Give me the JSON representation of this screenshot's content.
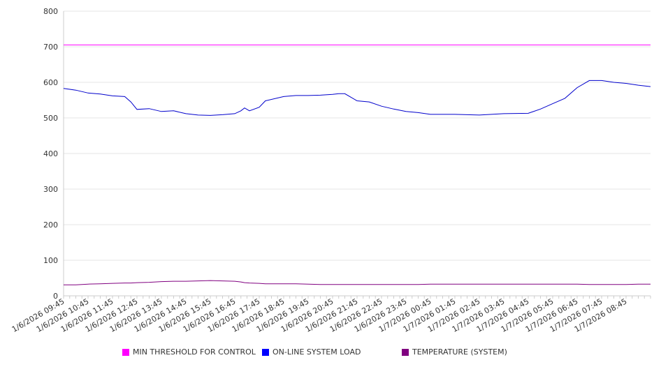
{
  "chart_data": {
    "type": "line",
    "ylim": [
      0,
      800
    ],
    "yticks": [
      "0",
      "100",
      "200",
      "300",
      "400",
      "500",
      "600",
      "700",
      "800"
    ],
    "grid": true,
    "legend_position": "bottom",
    "xtick_labels": [
      "1/6/2026 09:45",
      "1/6/2026 10:45",
      "1/6/2026 11:45",
      "1/6/2026 12:45",
      "1/6/2026 13:45",
      "1/6/2026 14:45",
      "1/6/2026 15:45",
      "1/6/2026 16:45",
      "1/6/2026 17:45",
      "1/6/2026 18:45",
      "1/6/2026 19:45",
      "1/6/2026 20:45",
      "1/6/2026 21:45",
      "1/6/2026 22:45",
      "1/6/2026 23:45",
      "1/7/2026 00:45",
      "1/7/2026 01:45",
      "1/7/2026 02:45",
      "1/7/2026 03:45",
      "1/7/2026 04:45",
      "1/7/2026 05:45",
      "1/7/2026 06:45",
      "1/7/2026 07:45",
      "1/7/2026 08:45"
    ],
    "x_hours_from_start": [
      0,
      0.5,
      1,
      1.5,
      2,
      2.5,
      2.75,
      3,
      3.5,
      4,
      4.5,
      5,
      5.5,
      6,
      6.5,
      7,
      7.25,
      7.4,
      7.6,
      8,
      8.25,
      9,
      9.5,
      10,
      10.5,
      11,
      11.25,
      11.5,
      12,
      12.5,
      13,
      13.5,
      14,
      14.5,
      15,
      16,
      17,
      18,
      19,
      19.5,
      20,
      20.5,
      21,
      21.5,
      22,
      22.5,
      23,
      23.5,
      24
    ],
    "series": [
      {
        "name": "MIN THRESHOLD FOR CONTROL",
        "color": "#ff00ff",
        "values": [
          705,
          705,
          705,
          705,
          705,
          705,
          705,
          705,
          705,
          705,
          705,
          705,
          705,
          705,
          705,
          705,
          705,
          705,
          705,
          705,
          705,
          705,
          705,
          705,
          705,
          705,
          705,
          705,
          705,
          705,
          705,
          705,
          705,
          705,
          705,
          705,
          705,
          705,
          705,
          705,
          705,
          705,
          705,
          705,
          705,
          705,
          705,
          705,
          705
        ]
      },
      {
        "name": "ON-LINE SYSTEM LOAD",
        "color": "#0000cc",
        "values": [
          583,
          578,
          570,
          567,
          562,
          560,
          545,
          524,
          526,
          518,
          520,
          512,
          508,
          507,
          509,
          512,
          520,
          528,
          520,
          530,
          548,
          560,
          563,
          563,
          564,
          566,
          568,
          568,
          548,
          545,
          533,
          525,
          518,
          515,
          510,
          510,
          508,
          512,
          513,
          525,
          540,
          555,
          585,
          605,
          605,
          600,
          597,
          592,
          588
        ]
      },
      {
        "name": "TEMPERATURE (SYSTEM)",
        "color": "#800080",
        "values": [
          31,
          31,
          33,
          34,
          35,
          36,
          36,
          37,
          38,
          40,
          41,
          41,
          42,
          43,
          42,
          41,
          39,
          37,
          36,
          35,
          34,
          34,
          34,
          33,
          32,
          32,
          32,
          32,
          32,
          32,
          32,
          32,
          32,
          32,
          33,
          33,
          33,
          33,
          33,
          33,
          33,
          33,
          33,
          32,
          32,
          32,
          32,
          33,
          33
        ]
      }
    ]
  }
}
